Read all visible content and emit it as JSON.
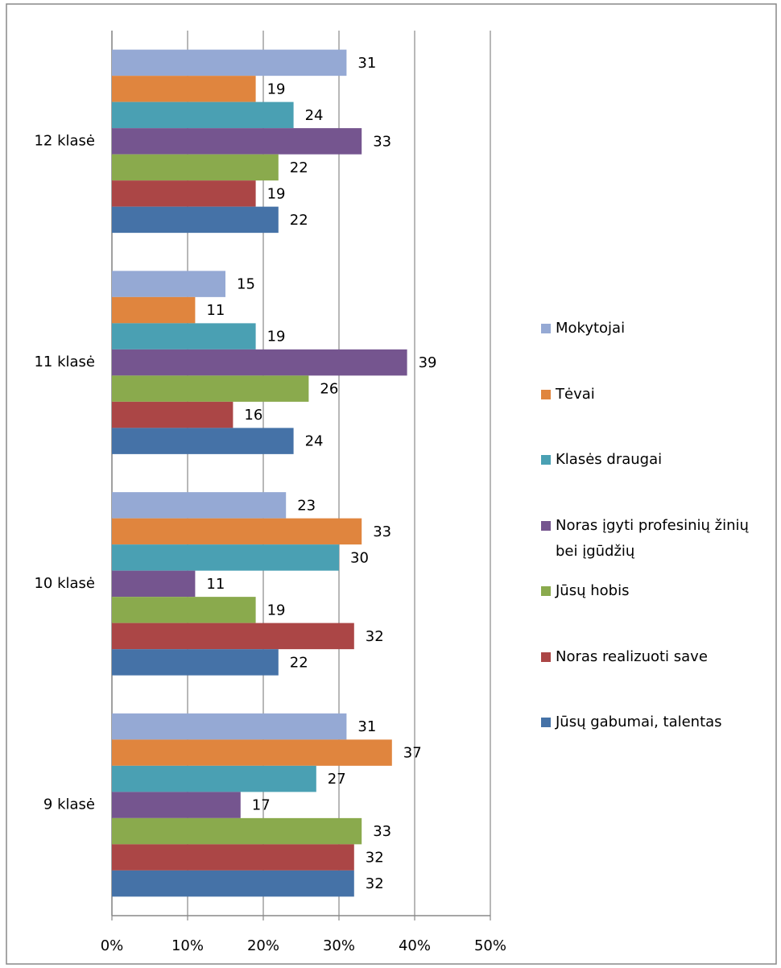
{
  "chart_data": {
    "type": "barh",
    "categories": [
      "12 klasė",
      "11 klasė",
      "10 klasė",
      "9 klasė"
    ],
    "series": [
      {
        "name": "Mokytojai",
        "color": "#95a9d4",
        "values": [
          31,
          15,
          23,
          31
        ]
      },
      {
        "name": "Tėvai",
        "color": "#e0853e",
        "values": [
          19,
          11,
          33,
          37
        ]
      },
      {
        "name": "Klasės draugai",
        "color": "#4aa0b3",
        "values": [
          24,
          19,
          30,
          27
        ]
      },
      {
        "name": "Noras įgyti profesinių žinių bei įgūdžių",
        "color": "#75558f",
        "values": [
          33,
          39,
          11,
          17
        ]
      },
      {
        "name": "Jūsų hobis",
        "color": "#8aaa4d",
        "values": [
          22,
          26,
          19,
          33
        ]
      },
      {
        "name": "Noras realizuoti save",
        "color": "#ab4646",
        "values": [
          19,
          16,
          32,
          32
        ]
      },
      {
        "name": "Jūsų gabumai, talentas",
        "color": "#4572a7",
        "values": [
          22,
          24,
          22,
          32
        ]
      }
    ],
    "xlim": [
      0,
      50
    ],
    "xticks": [
      {
        "value": 0,
        "label": "0%"
      },
      {
        "value": 10,
        "label": "10%"
      },
      {
        "value": 20,
        "label": "20%"
      },
      {
        "value": 30,
        "label": "30%"
      },
      {
        "value": 40,
        "label": "40%"
      },
      {
        "value": 50,
        "label": "50%"
      }
    ],
    "grid": true,
    "legend": "right"
  }
}
